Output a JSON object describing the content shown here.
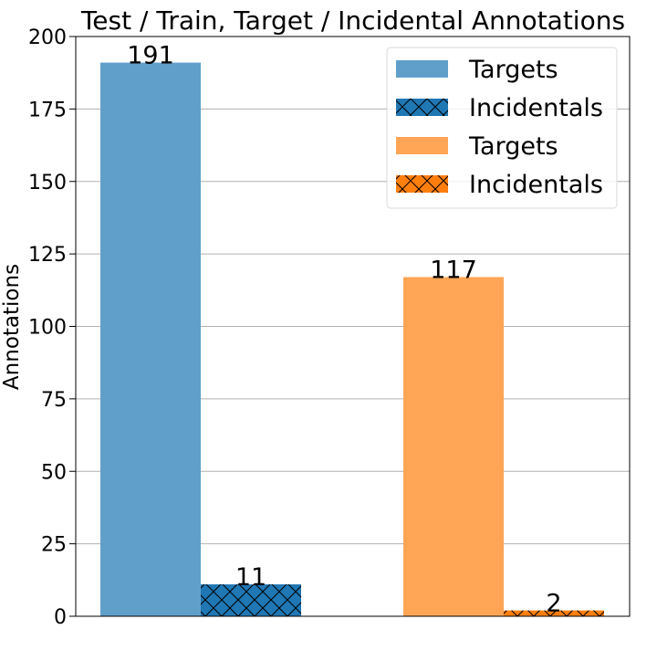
{
  "chart_data": {
    "type": "bar",
    "title": "Test / Train, Target / Incidental Annotations",
    "xlabel": "",
    "ylabel": "Annotations",
    "ylim": [
      0,
      200
    ],
    "yticks": [
      0,
      25,
      50,
      75,
      100,
      125,
      150,
      175,
      200
    ],
    "grid": "y-major",
    "x_tick_labels_shown": false,
    "legend_position": "upper-right",
    "groups": 2,
    "bars": [
      {
        "group": 0,
        "kind": "target",
        "legend_label": "Targets",
        "value": 191,
        "label": "191",
        "color": "#619fcb",
        "hatch": false
      },
      {
        "group": 0,
        "kind": "incidental",
        "legend_label": "Incidentals",
        "value": 11,
        "label": "11",
        "color": "#1f77b4",
        "hatch": true
      },
      {
        "group": 1,
        "kind": "target",
        "legend_label": "Targets",
        "value": 117,
        "label": "117",
        "color": "#ffa555",
        "hatch": false
      },
      {
        "group": 1,
        "kind": "incidental",
        "legend_label": "Incidentals",
        "value": 2,
        "label": "2",
        "color": "#ff7f0e",
        "hatch": true
      }
    ],
    "legend": [
      {
        "label": "Targets",
        "color": "#619fcb",
        "hatch": false
      },
      {
        "label": "Incidentals",
        "color": "#1f77b4",
        "hatch": true
      },
      {
        "label": "Targets",
        "color": "#ffa555",
        "hatch": false
      },
      {
        "label": "Incidentals",
        "color": "#ff7f0e",
        "hatch": true
      }
    ]
  }
}
